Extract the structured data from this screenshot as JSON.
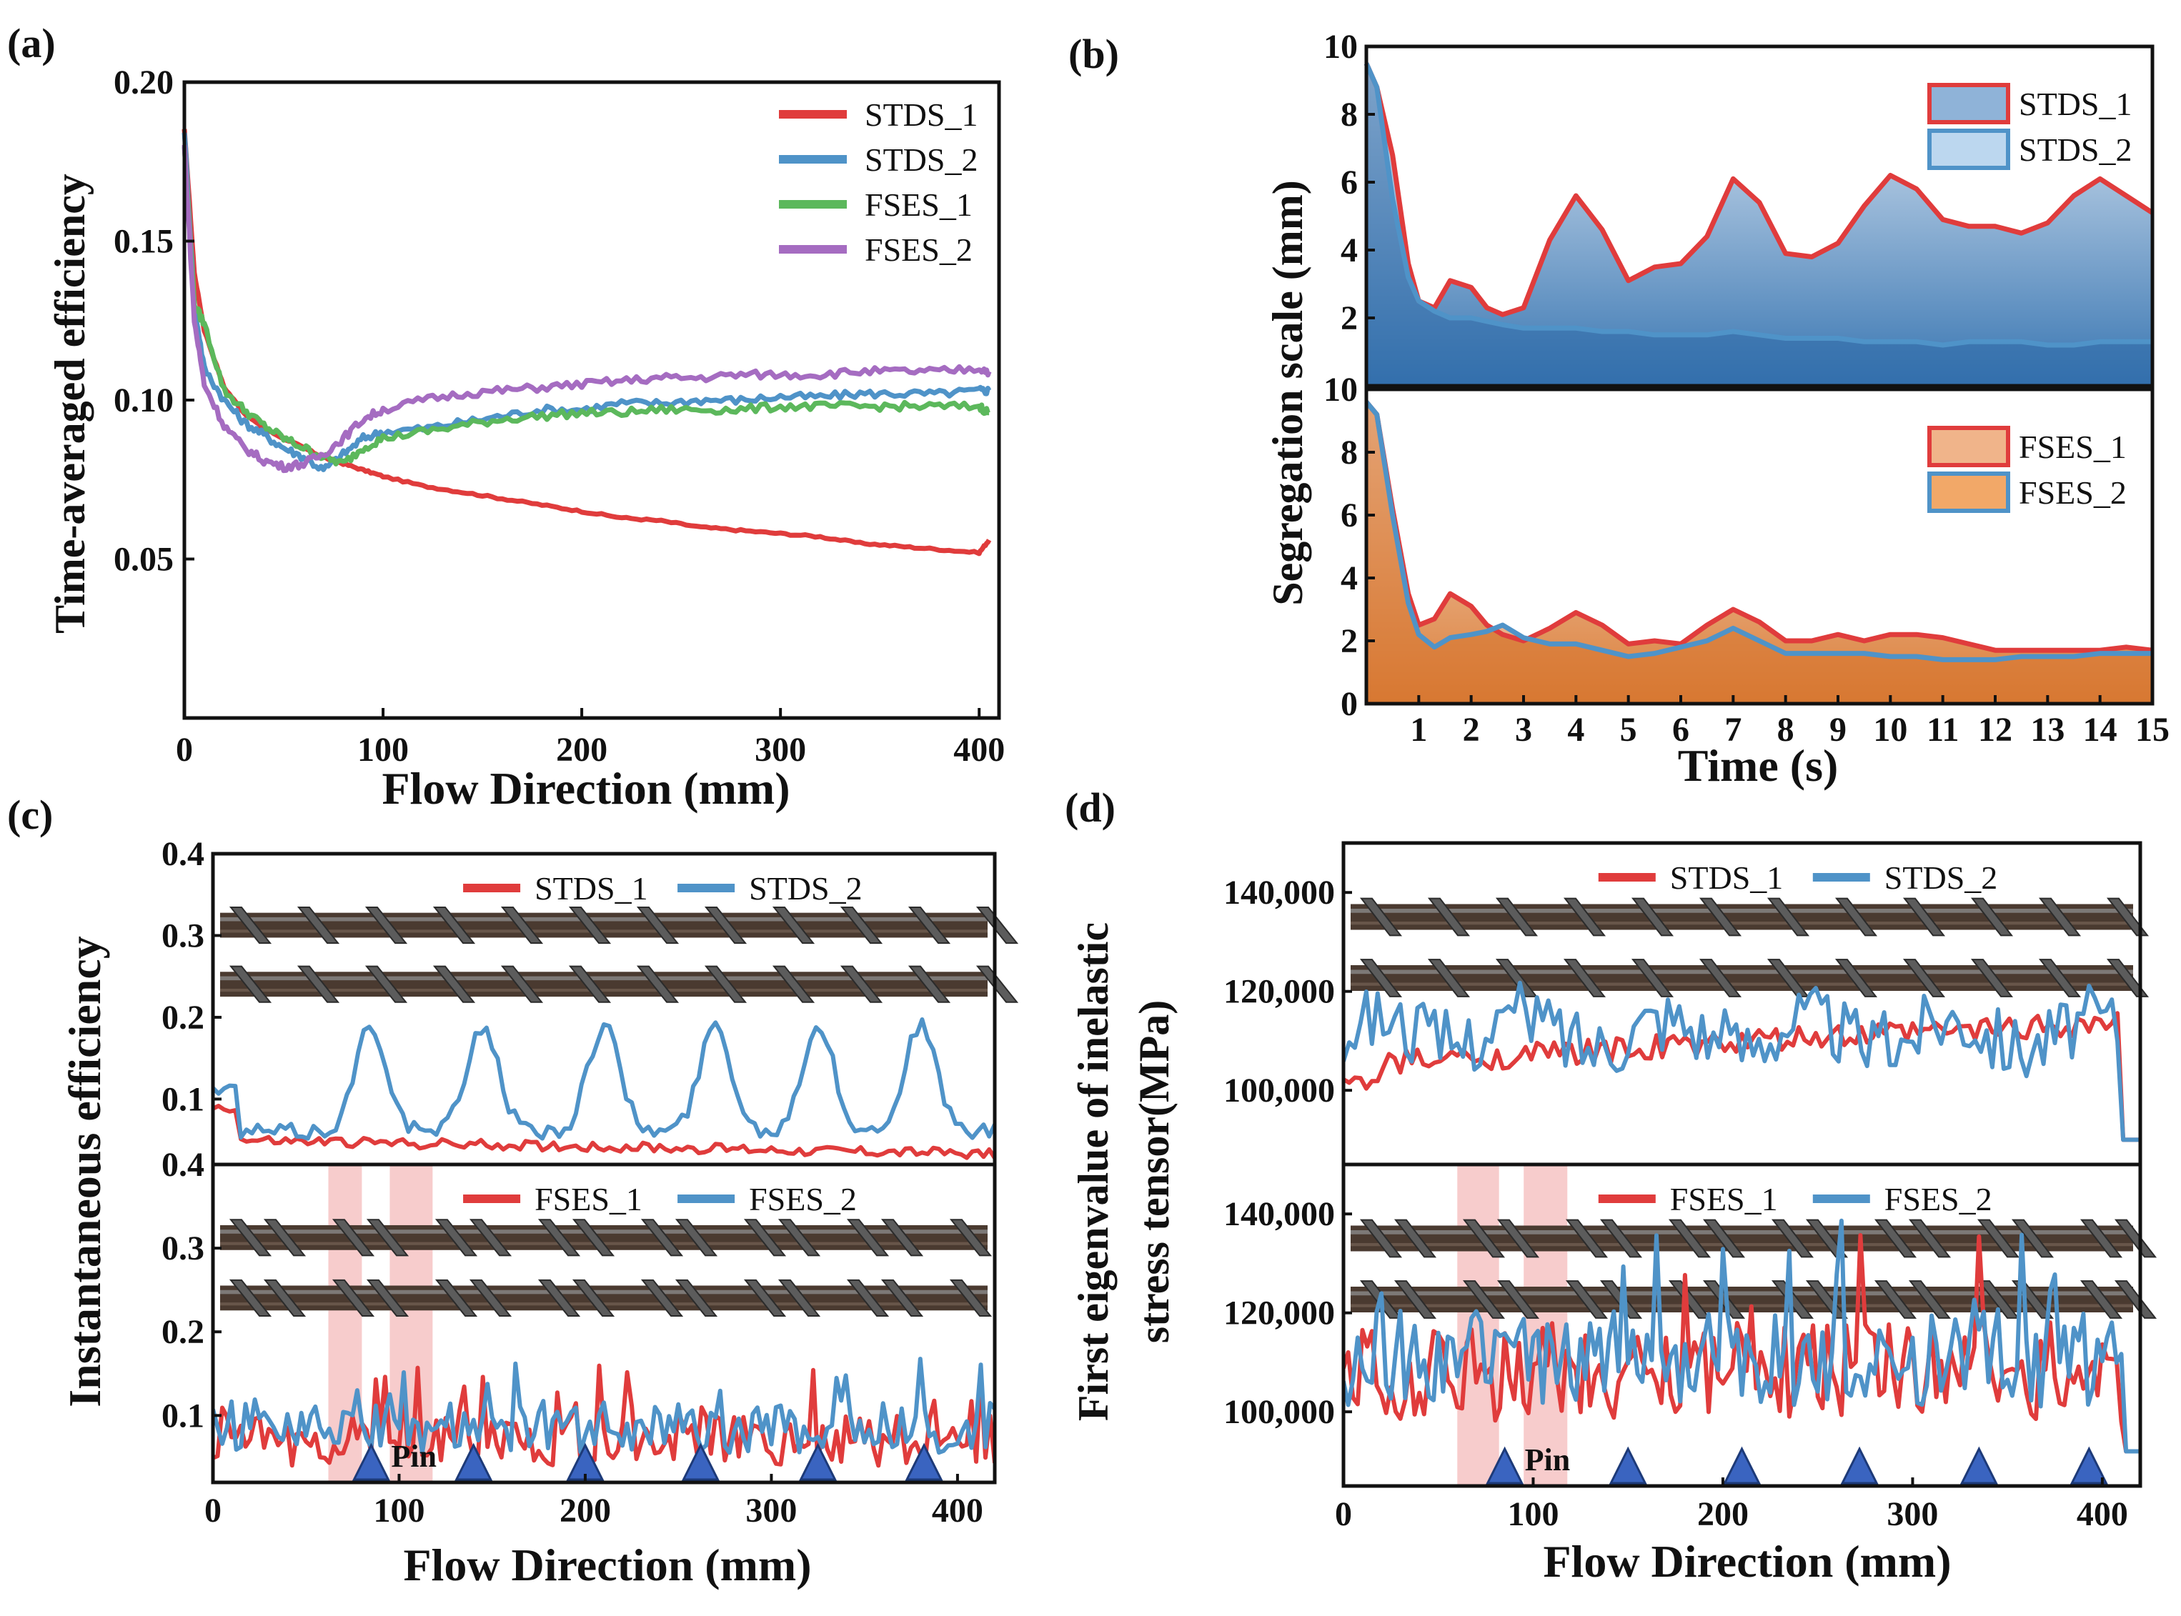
{
  "colors": {
    "stds1": "#e03c3c",
    "stds2": "#4f93c8",
    "fses1": "#5cb85c",
    "fses2": "#a56cc1",
    "fill_stds": "#2f6fae",
    "fill_fses": "#d9782f",
    "highlight": "#f4b6b6",
    "marker": "#3a64c0"
  },
  "chart_data": [
    {
      "id": "a",
      "type": "line",
      "panel": "(a)",
      "xlabel": "Flow Direction (mm)",
      "ylabel": "Time-averaged efficiency",
      "xlim": [
        0,
        410
      ],
      "ylim": [
        0.0,
        0.2
      ],
      "xticks": [
        "0",
        "100",
        "200",
        "300",
        "400"
      ],
      "xtick_values": [
        0,
        100,
        200,
        300,
        400
      ],
      "yticks": [
        "0.05",
        "0.10",
        "0.15",
        "0.20"
      ],
      "ytick_values": [
        0.05,
        0.1,
        0.15,
        0.2
      ],
      "legend_position": "top-right",
      "x": [
        0,
        5,
        10,
        20,
        30,
        40,
        50,
        60,
        70,
        80,
        90,
        100,
        120,
        140,
        160,
        180,
        200,
        220,
        240,
        260,
        280,
        300,
        320,
        340,
        360,
        380,
        400,
        405
      ],
      "series": [
        {
          "name": "STDS_1",
          "color_key": "stds1",
          "values": [
            0.185,
            0.14,
            0.122,
            0.104,
            0.096,
            0.091,
            0.088,
            0.085,
            0.082,
            0.08,
            0.078,
            0.076,
            0.073,
            0.071,
            0.069,
            0.067,
            0.065,
            0.063,
            0.062,
            0.06,
            0.059,
            0.058,
            0.057,
            0.055,
            0.054,
            0.053,
            0.052,
            0.056
          ]
        },
        {
          "name": "STDS_2",
          "color_key": "stds2",
          "values": [
            0.185,
            0.13,
            0.11,
            0.1,
            0.093,
            0.089,
            0.085,
            0.082,
            0.078,
            0.083,
            0.088,
            0.09,
            0.091,
            0.093,
            0.095,
            0.097,
            0.097,
            0.099,
            0.099,
            0.1,
            0.1,
            0.101,
            0.101,
            0.102,
            0.102,
            0.102,
            0.103,
            0.103
          ]
        },
        {
          "name": "FSES_1",
          "color_key": "fses1",
          "values": [
            0.18,
            0.13,
            0.124,
            0.103,
            0.097,
            0.092,
            0.088,
            0.085,
            0.082,
            0.08,
            0.085,
            0.088,
            0.09,
            0.092,
            0.094,
            0.095,
            0.096,
            0.096,
            0.097,
            0.097,
            0.097,
            0.098,
            0.098,
            0.098,
            0.098,
            0.098,
            0.098,
            0.096
          ]
        },
        {
          "name": "FSES_2",
          "color_key": "fses2",
          "values": [
            0.18,
            0.125,
            0.105,
            0.092,
            0.085,
            0.081,
            0.079,
            0.08,
            0.083,
            0.088,
            0.094,
            0.097,
            0.1,
            0.102,
            0.103,
            0.104,
            0.105,
            0.106,
            0.107,
            0.107,
            0.108,
            0.108,
            0.108,
            0.109,
            0.109,
            0.109,
            0.11,
            0.109
          ]
        }
      ]
    },
    {
      "id": "b",
      "type": "area",
      "panel": "(b)",
      "xlabel": "Time (s)",
      "ylabel": "Segregation scale (mm)",
      "xlim": [
        0,
        15
      ],
      "ylim": [
        0,
        10
      ],
      "xticks": [
        "1",
        "2",
        "3",
        "4",
        "5",
        "6",
        "7",
        "8",
        "9",
        "10",
        "11",
        "12",
        "13",
        "14",
        "15"
      ],
      "xtick_values": [
        1,
        2,
        3,
        4,
        5,
        6,
        7,
        8,
        9,
        10,
        11,
        12,
        13,
        14,
        15
      ],
      "yticks_top": [
        "2",
        "4",
        "6",
        "8",
        "10"
      ],
      "ytick_values_top": [
        2,
        4,
        6,
        8,
        10
      ],
      "yticks_bottom": [
        "0",
        "2",
        "4",
        "6",
        "8",
        "10"
      ],
      "ytick_values_bottom": [
        0,
        2,
        4,
        6,
        8,
        10
      ],
      "legend_position": "top-right",
      "x": [
        0,
        0.2,
        0.5,
        0.8,
        1.0,
        1.3,
        1.6,
        2.0,
        2.3,
        2.6,
        3.0,
        3.5,
        4.0,
        4.5,
        5.0,
        5.5,
        6.0,
        6.5,
        7.0,
        7.5,
        8.0,
        8.5,
        9.0,
        9.5,
        10.0,
        10.5,
        11.0,
        11.5,
        12.0,
        12.5,
        13.0,
        13.5,
        14.0,
        14.5,
        15.0
      ],
      "top_series": [
        {
          "name": "STDS_1",
          "color_key": "stds1",
          "values": [
            9.5,
            8.8,
            6.8,
            3.6,
            2.5,
            2.3,
            3.1,
            2.9,
            2.3,
            2.1,
            2.3,
            4.3,
            5.6,
            4.6,
            3.1,
            3.5,
            3.6,
            4.4,
            6.1,
            5.4,
            3.9,
            3.8,
            4.2,
            5.3,
            6.2,
            5.8,
            4.9,
            4.7,
            4.7,
            4.5,
            4.8,
            5.6,
            6.1,
            5.6,
            5.1
          ]
        },
        {
          "name": "STDS_2",
          "color_key": "stds2",
          "values": [
            9.5,
            8.8,
            5.5,
            3.2,
            2.5,
            2.2,
            2.0,
            2.0,
            1.9,
            1.8,
            1.7,
            1.7,
            1.7,
            1.6,
            1.6,
            1.5,
            1.5,
            1.5,
            1.6,
            1.5,
            1.4,
            1.4,
            1.4,
            1.3,
            1.3,
            1.3,
            1.2,
            1.3,
            1.3,
            1.3,
            1.2,
            1.2,
            1.3,
            1.3,
            1.3
          ]
        }
      ],
      "bottom_series": [
        {
          "name": "FSES_1",
          "color_key": "stds1",
          "values": [
            9.6,
            9.2,
            6.2,
            3.5,
            2.5,
            2.7,
            3.5,
            3.1,
            2.5,
            2.2,
            2.0,
            2.4,
            2.9,
            2.5,
            1.9,
            2.0,
            1.9,
            2.5,
            3.0,
            2.6,
            2.0,
            2.0,
            2.2,
            2.0,
            2.2,
            2.2,
            2.1,
            1.9,
            1.7,
            1.7,
            1.7,
            1.7,
            1.7,
            1.8,
            1.7
          ]
        },
        {
          "name": "FSES_2",
          "color_key": "stds2",
          "values": [
            9.6,
            9.2,
            6.0,
            3.2,
            2.2,
            1.8,
            2.1,
            2.2,
            2.3,
            2.5,
            2.1,
            1.9,
            1.9,
            1.7,
            1.5,
            1.6,
            1.8,
            2.0,
            2.4,
            2.0,
            1.6,
            1.6,
            1.6,
            1.6,
            1.5,
            1.5,
            1.4,
            1.4,
            1.4,
            1.5,
            1.5,
            1.5,
            1.6,
            1.6,
            1.6
          ]
        }
      ]
    },
    {
      "id": "c",
      "type": "line",
      "panel": "(c)",
      "xlabel": "Flow Direction (mm)",
      "ylabel": "Instantaneous  efficiency",
      "xlim": [
        0,
        420
      ],
      "ylim": [
        0.02,
        0.4
      ],
      "xticks": [
        "0",
        "100",
        "200",
        "300",
        "400"
      ],
      "xtick_values": [
        0,
        100,
        200,
        300,
        400
      ],
      "yticks_top": [
        "0.1",
        "0.2",
        "0.3",
        "0.4"
      ],
      "ytick_values_top": [
        0.1,
        0.2,
        0.3,
        0.4
      ],
      "yticks_bottom": [
        "0.1",
        "0.2",
        "0.3",
        "0.4"
      ],
      "ytick_values_bottom": [
        0.1,
        0.2,
        0.3,
        0.4
      ],
      "top_legend": [
        "STDS_1",
        "STDS_2"
      ],
      "bottom_legend": [
        "FSES_1",
        "FSES_2"
      ],
      "pin_label": "Pin",
      "pin_positions": [
        85,
        140,
        200,
        262,
        325,
        382
      ],
      "highlight_bands": [
        [
          62,
          80
        ],
        [
          95,
          118
        ]
      ],
      "stds_peaks": [
        85,
        145,
        210,
        270,
        325,
        380
      ],
      "stds1_baseline": 0.05,
      "stds2_peak": 0.19,
      "fses_range": [
        0.04,
        0.17
      ]
    },
    {
      "id": "d",
      "type": "line",
      "panel": "(d)",
      "xlabel": "Flow Direction (mm)",
      "ylabel_line1": "First eigenvalue of inelastic",
      "ylabel_line2": "stress tensor(MPa)",
      "xlim": [
        0,
        420
      ],
      "ylim": [
        85000,
        150000
      ],
      "xticks": [
        "0",
        "100",
        "200",
        "300",
        "400"
      ],
      "xtick_values": [
        0,
        100,
        200,
        300,
        400
      ],
      "yticks_top": [
        "100,000",
        "120,000",
        "140,000"
      ],
      "ytick_values_top": [
        100000,
        120000,
        140000
      ],
      "yticks_bottom": [
        "100,000",
        "120,000",
        "140,000"
      ],
      "ytick_values_bottom": [
        100000,
        120000,
        140000
      ],
      "top_legend": [
        "STDS_1",
        "STDS_2"
      ],
      "bottom_legend": [
        "FSES_1",
        "FSES_2"
      ],
      "pin_label": "Pin",
      "pin_positions": [
        85,
        150,
        210,
        272,
        335,
        393
      ],
      "highlight_bands": [
        [
          60,
          82
        ],
        [
          95,
          118
        ]
      ]
    }
  ]
}
